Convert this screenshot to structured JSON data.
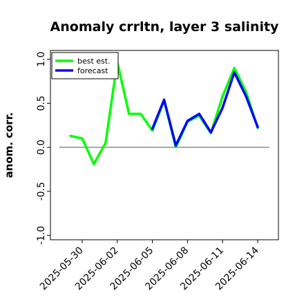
{
  "chart_data": {
    "type": "line",
    "title": "Anomaly crrltn, layer 3 salinity",
    "ylabel": "anom. corr.",
    "xlabel": "",
    "ylim": [
      -1.05,
      1.1
    ],
    "yticks": [
      -1.0,
      -0.5,
      0.0,
      0.5,
      1.0
    ],
    "ytick_labels": [
      "-1.0",
      "-0.5",
      "0.0",
      "0.5",
      "1.0"
    ],
    "xticks": [
      "2025-05-30",
      "2025-06-02",
      "2025-06-05",
      "2025-06-08",
      "2025-06-11",
      "2025-06-14"
    ],
    "highlight_tick": "2025-06-05",
    "highlight_color": "#228b22",
    "x": [
      "2025-05-29",
      "2025-05-30",
      "2025-05-31",
      "2025-06-01",
      "2025-06-02",
      "2025-06-03",
      "2025-06-04",
      "2025-06-05",
      "2025-06-06",
      "2025-06-07",
      "2025-06-08",
      "2025-06-09",
      "2025-06-10",
      "2025-06-11",
      "2025-06-12",
      "2025-06-13",
      "2025-06-14"
    ],
    "series": [
      {
        "name": "best est.",
        "color": "#00ff00",
        "values": [
          0.13,
          0.1,
          -0.19,
          0.05,
          0.97,
          0.38,
          0.38,
          0.19,
          0.53,
          0.0,
          0.29,
          0.36,
          0.16,
          0.58,
          0.9,
          0.63,
          0.22
        ]
      },
      {
        "name": "forecast",
        "color": "#0000ff",
        "values": [
          null,
          null,
          null,
          null,
          null,
          null,
          null,
          0.21,
          0.54,
          0.02,
          0.3,
          0.38,
          0.17,
          0.45,
          0.85,
          0.58,
          0.23
        ]
      }
    ],
    "zero_line": 0.0,
    "legend_position": "top-left",
    "grid": false
  }
}
